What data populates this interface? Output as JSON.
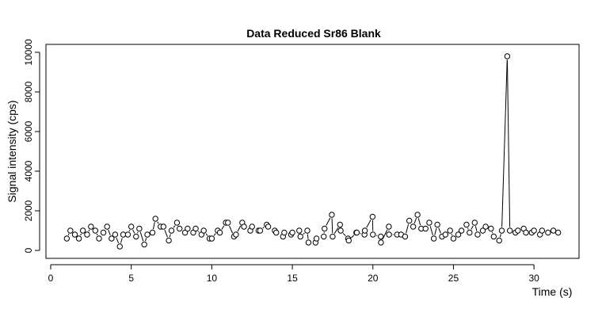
{
  "chart_data": {
    "type": "line",
    "title": "Data Reduced Sr86 Blank",
    "xlabel": "Time (s)",
    "ylabel": "Signal intensity (cps)",
    "xlim": [
      0,
      32.5
    ],
    "ylim": [
      0,
      10000
    ],
    "x_ticks": [
      0,
      5,
      10,
      15,
      20,
      25,
      30
    ],
    "y_ticks": [
      0,
      2000,
      4000,
      6000,
      8000,
      10000
    ],
    "grid": false,
    "legend": "none",
    "series": [
      {
        "style": "points-and-lines",
        "x": [
          1.0,
          1.22,
          1.5,
          1.75,
          2.0,
          2.26,
          2.5,
          2.77,
          3.0,
          3.27,
          3.5,
          3.78,
          4.0,
          4.29,
          4.5,
          4.79,
          5.0,
          5.3,
          5.5,
          5.81,
          6.0,
          6.32,
          6.5,
          6.82,
          7.0,
          7.33,
          7.5,
          7.84,
          8.0,
          8.34,
          8.5,
          8.85,
          9.0,
          9.36,
          9.5,
          9.86,
          10.0,
          10.37,
          10.5,
          10.87,
          11.0,
          11.38,
          11.5,
          11.89,
          12.0,
          12.39,
          12.5,
          12.9,
          13.0,
          13.41,
          13.5,
          13.91,
          14.0,
          14.42,
          14.5,
          14.92,
          15.0,
          15.43,
          15.5,
          15.93,
          16.0,
          16.44,
          16.5,
          16.95,
          17.0,
          17.45,
          17.5,
          17.96,
          18.0,
          18.46,
          18.5,
          18.97,
          19.0,
          19.48,
          19.5,
          19.98,
          20.0,
          20.49,
          20.5,
          20.99,
          21.0,
          21.5,
          21.75,
          22.0,
          22.26,
          22.5,
          22.77,
          23.0,
          23.27,
          23.5,
          23.78,
          24.0,
          24.29,
          24.5,
          24.79,
          25.0,
          25.3,
          25.5,
          25.81,
          26.0,
          26.32,
          26.5,
          26.82,
          27.0,
          27.33,
          27.5,
          27.84,
          28.0,
          28.34,
          28.5,
          28.85,
          29.0,
          29.36,
          29.5,
          29.86,
          30.0,
          30.37,
          30.5,
          30.87,
          31.2,
          31.5
        ],
        "y": [
          600,
          1000,
          800,
          600,
          1000,
          800,
          1200,
          1000,
          600,
          900,
          1200,
          600,
          800,
          200,
          800,
          800,
          1200,
          700,
          1100,
          300,
          800,
          900,
          1600,
          1200,
          1200,
          500,
          1000,
          1400,
          1100,
          900,
          1100,
          900,
          1100,
          800,
          1000,
          600,
          600,
          1000,
          900,
          1400,
          1400,
          700,
          800,
          1400,
          1200,
          1000,
          1200,
          1000,
          1000,
          1300,
          1200,
          1000,
          900,
          700,
          900,
          800,
          900,
          1000,
          700,
          1000,
          400,
          400,
          600,
          700,
          1100,
          1800,
          700,
          1300,
          1000,
          600,
          500,
          900,
          900,
          800,
          1000,
          1700,
          800,
          700,
          400,
          1200,
          800,
          800,
          800,
          700,
          1500,
          1200,
          1800,
          1100,
          1100,
          1400,
          600,
          1300,
          700,
          800,
          1000,
          600,
          800,
          1000,
          1300,
          900,
          1400,
          800,
          1000,
          1200,
          1100,
          700,
          500,
          1000,
          9800,
          1000,
          900,
          1000,
          1100,
          900,
          900,
          1000,
          800,
          1000,
          900,
          1000,
          900
        ]
      }
    ]
  }
}
